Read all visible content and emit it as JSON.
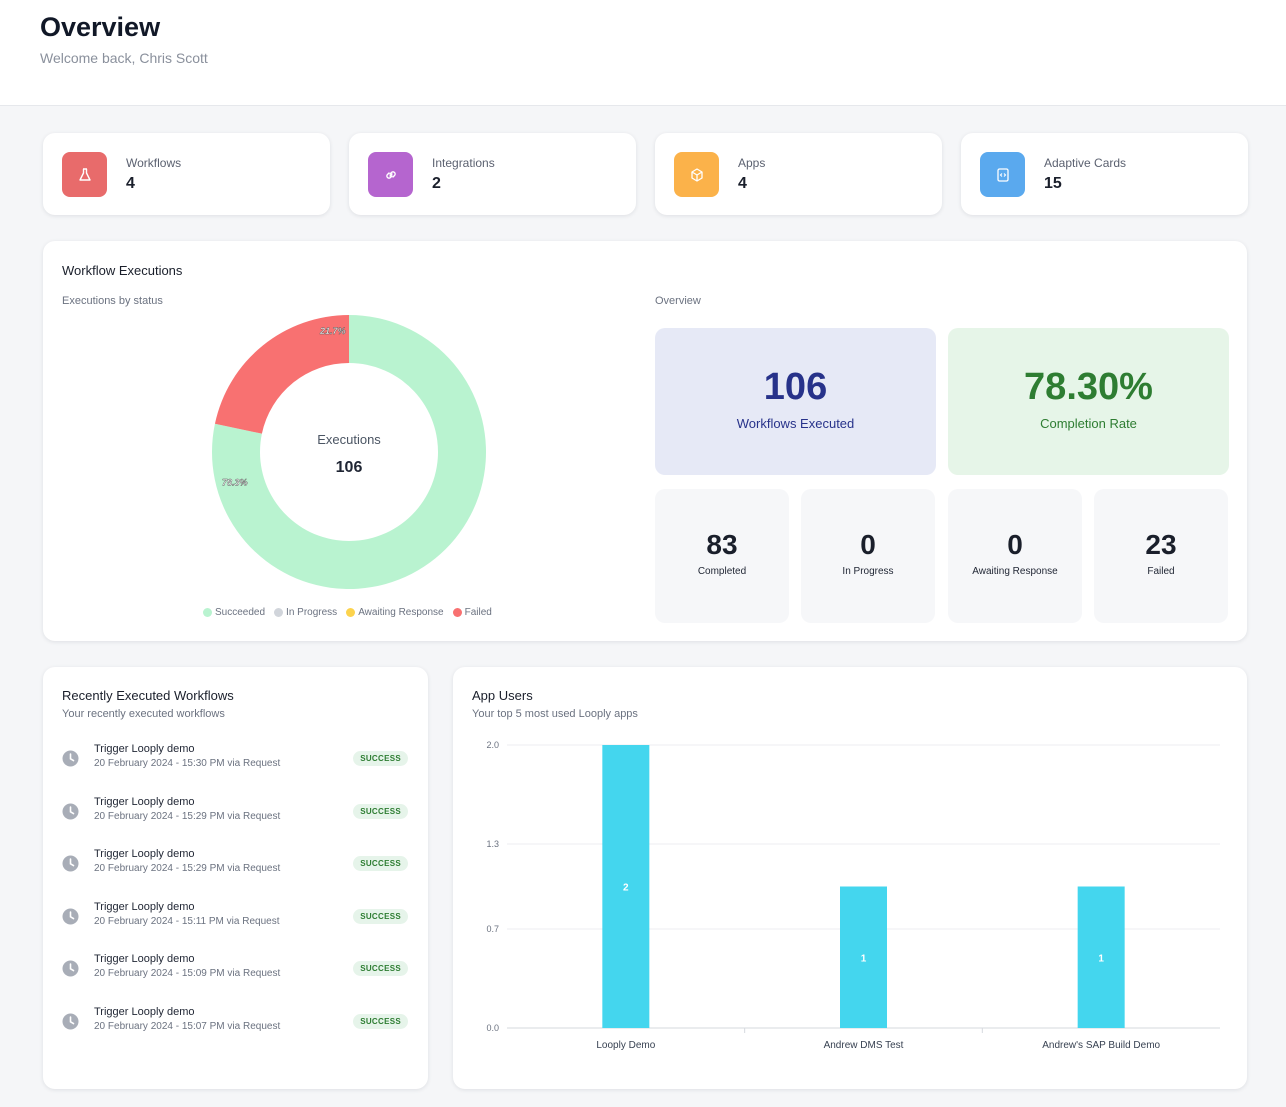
{
  "header": {
    "title": "Overview",
    "subtitle": "Welcome back, Chris Scott"
  },
  "stats": [
    {
      "label": "Workflows",
      "value": "4",
      "icon": "flask-icon",
      "color": "#e86b6b"
    },
    {
      "label": "Integrations",
      "value": "2",
      "icon": "link-icon",
      "color": "#b565cf"
    },
    {
      "label": "Apps",
      "value": "4",
      "icon": "cube-icon",
      "color": "#fbb24a"
    },
    {
      "label": "Adaptive Cards",
      "value": "15",
      "icon": "code-icon",
      "color": "#5aa9ee"
    }
  ],
  "executions": {
    "title": "Workflow Executions",
    "donut_subtitle": "Executions by status",
    "center_label": "Executions",
    "center_value": "106",
    "overview_label": "Overview",
    "workflows_executed": "106",
    "workflows_executed_label": "Workflows Executed",
    "completion_rate": "78.30%",
    "completion_rate_label": "Completion Rate",
    "breakdown": [
      {
        "value": "83",
        "label": "Completed"
      },
      {
        "value": "0",
        "label": "In Progress"
      },
      {
        "value": "0",
        "label": "Awaiting Response"
      },
      {
        "value": "23",
        "label": "Failed"
      }
    ],
    "legend": [
      {
        "label": "Succeeded",
        "color": "#b9f3d0"
      },
      {
        "label": "In Progress",
        "color": "#d1d5db"
      },
      {
        "label": "Awaiting Response",
        "color": "#fcd34d"
      },
      {
        "label": "Failed",
        "color": "#f87171"
      }
    ]
  },
  "recent": {
    "title": "Recently Executed Workflows",
    "subtitle": "Your recently executed workflows",
    "items": [
      {
        "name": "Trigger Looply demo",
        "meta": "20 February 2024 - 15:30 PM via Request",
        "status": "SUCCESS"
      },
      {
        "name": "Trigger Looply demo",
        "meta": "20 February 2024 - 15:29 PM via Request",
        "status": "SUCCESS"
      },
      {
        "name": "Trigger Looply demo",
        "meta": "20 February 2024 - 15:29 PM via Request",
        "status": "SUCCESS"
      },
      {
        "name": "Trigger Looply demo",
        "meta": "20 February 2024 - 15:11 PM via Request",
        "status": "SUCCESS"
      },
      {
        "name": "Trigger Looply demo",
        "meta": "20 February 2024 - 15:09 PM via Request",
        "status": "SUCCESS"
      },
      {
        "name": "Trigger Looply demo",
        "meta": "20 February 2024 - 15:07 PM via Request",
        "status": "SUCCESS"
      }
    ]
  },
  "app_users": {
    "title": "App Users",
    "subtitle": "Your top 5 most used Looply apps"
  },
  "chart_data": [
    {
      "type": "pie",
      "categories": [
        "Succeeded",
        "In Progress",
        "Awaiting Response",
        "Failed"
      ],
      "values": [
        83,
        0,
        0,
        23
      ],
      "data_labels": [
        "78.3%",
        "",
        "",
        "21.7%"
      ],
      "colors": [
        "#b9f3d0",
        "#d1d5db",
        "#fcd34d",
        "#f87171"
      ],
      "legend": "bottom"
    },
    {
      "type": "bar",
      "categories": [
        "Looply Demo",
        "Andrew DMS Test",
        "Andrew's SAP Build Demo"
      ],
      "values": [
        2,
        1,
        1
      ],
      "yticks": [
        "0.0",
        "0.7",
        "1.3",
        "2.0"
      ],
      "ylim": [
        0,
        2
      ],
      "color": "#44d6ee",
      "grid": true
    }
  ]
}
